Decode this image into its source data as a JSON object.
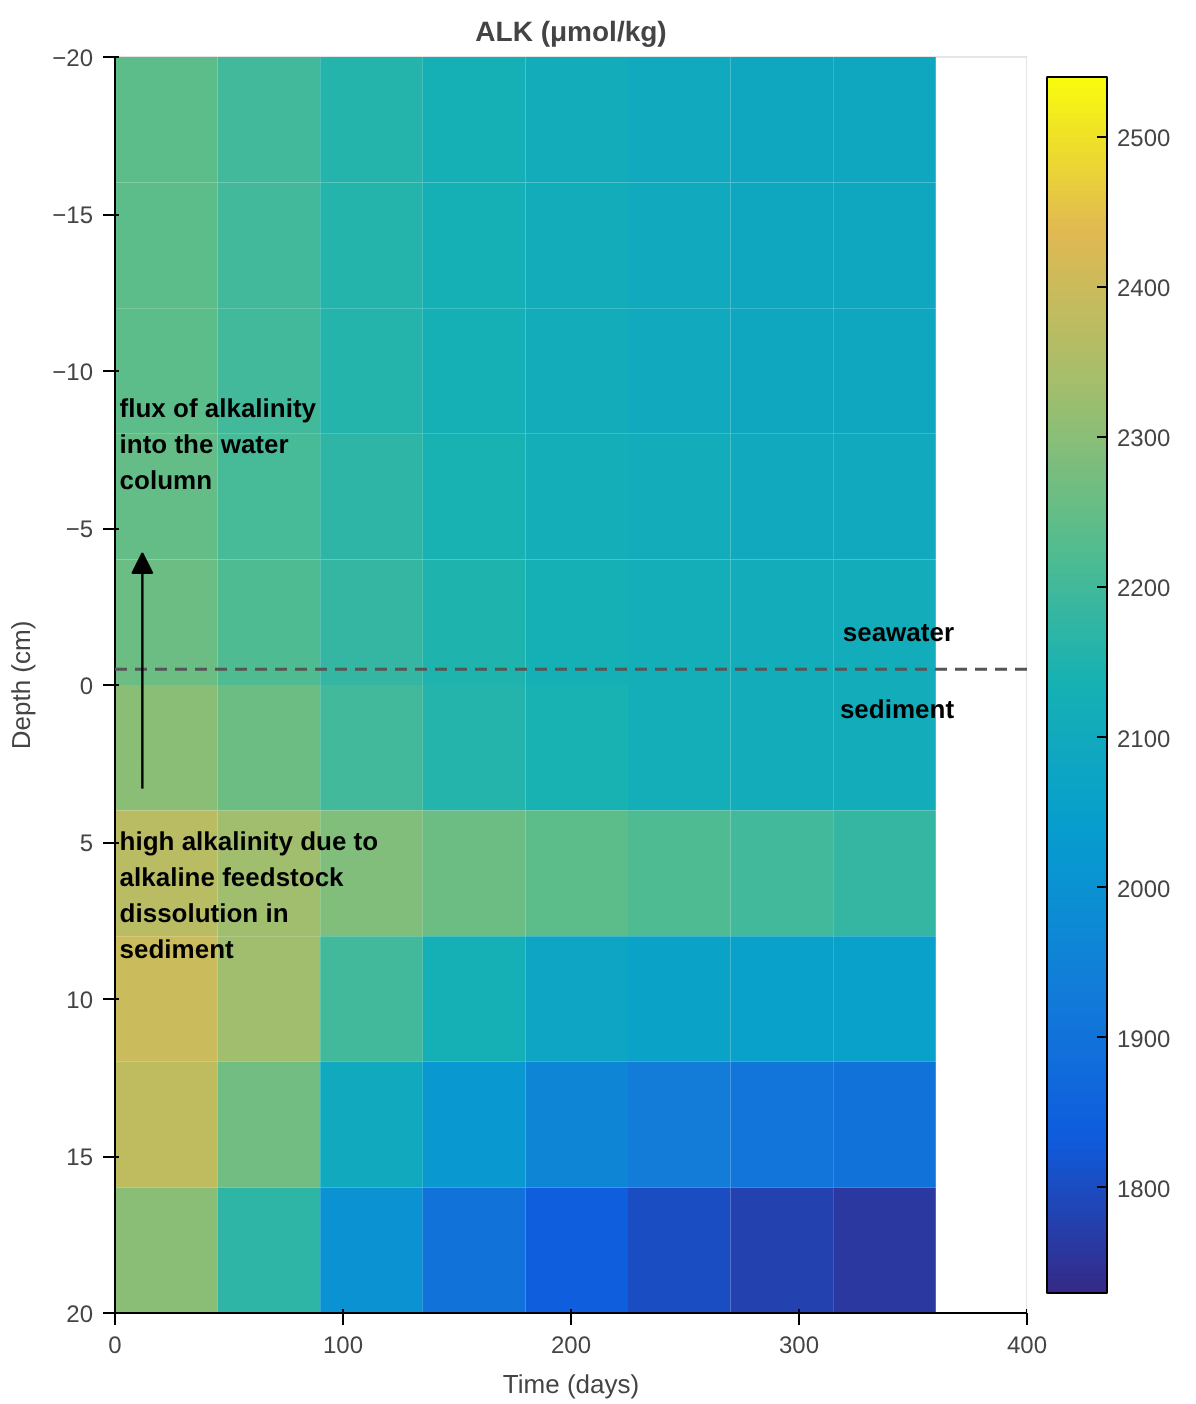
{
  "chart_data": {
    "type": "heatmap",
    "title": "ALK (μmol/kg)",
    "xlabel": "Time (days)",
    "ylabel": "Depth (cm)",
    "x": [
      22.5,
      67.5,
      112.5,
      157.5,
      202.5,
      247.5,
      292.5,
      337.5
    ],
    "cells": [
      [
        2240,
        2200,
        2160,
        2130,
        2110,
        2100,
        2090,
        2090
      ],
      [
        2240,
        2200,
        2160,
        2130,
        2110,
        2100,
        2090,
        2090
      ],
      [
        2240,
        2200,
        2160,
        2130,
        2110,
        2100,
        2090,
        2090
      ],
      [
        2250,
        2210,
        2170,
        2140,
        2120,
        2110,
        2100,
        2100
      ],
      [
        2260,
        2220,
        2180,
        2150,
        2130,
        2120,
        2110,
        2110
      ],
      [
        2300,
        2260,
        2200,
        2160,
        2140,
        2120,
        2110,
        2110
      ],
      [
        2370,
        2330,
        2290,
        2260,
        2240,
        2220,
        2200,
        2180
      ],
      [
        2400,
        2330,
        2200,
        2130,
        2080,
        2060,
        2050,
        2050
      ],
      [
        2380,
        2270,
        2100,
        2020,
        1960,
        1930,
        1910,
        1900
      ],
      [
        2300,
        2170,
        2000,
        1900,
        1840,
        1800,
        1780,
        1760
      ]
    ],
    "xlim": [
      0,
      400
    ],
    "xticks": [
      0,
      100,
      200,
      300,
      400
    ],
    "ylim": [
      20,
      -20
    ],
    "yticks": [
      -20,
      -15,
      -10,
      -5,
      0,
      5,
      10,
      15,
      20
    ],
    "clim": [
      1730,
      2540
    ],
    "cticks": [
      1800,
      1900,
      2000,
      2100,
      2200,
      2300,
      2400,
      2500
    ],
    "ref_lines": [
      {
        "axis": "y",
        "value": -0.5,
        "color": "#555555",
        "line_style": "dashed"
      }
    ],
    "annotations": [
      "flux of alkalinity into the water column",
      "high alkalinity due to alkaline feedstock dissolution in sediment",
      "seawater",
      "sediment"
    ]
  }
}
